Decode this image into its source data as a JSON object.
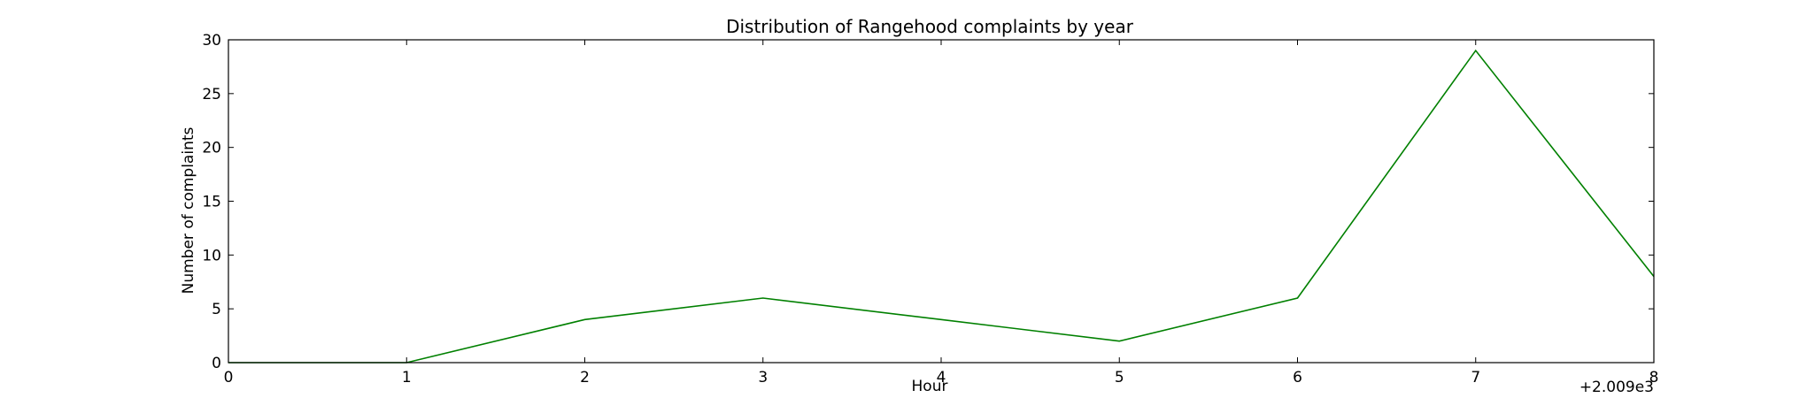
{
  "chart_data": {
    "type": "line",
    "title": "Distribution of  Rangehood complaints by year",
    "xlabel": "Hour",
    "ylabel": "Number of complaints",
    "x_offset_label": "+2.009e3",
    "x": [
      0,
      1,
      2,
      3,
      4,
      5,
      6,
      7,
      8
    ],
    "x_ticks": [
      "0",
      "1",
      "2",
      "3",
      "4",
      "5",
      "6",
      "7",
      "8"
    ],
    "y_ticks": [
      "0",
      "5",
      "10",
      "15",
      "20",
      "25",
      "30"
    ],
    "xlim": [
      0,
      8
    ],
    "ylim": [
      0,
      30
    ],
    "grid": false,
    "series": [
      {
        "values": [
          0,
          0,
          4,
          6,
          4,
          2,
          6,
          29,
          8
        ],
        "color": "#008000"
      }
    ]
  }
}
